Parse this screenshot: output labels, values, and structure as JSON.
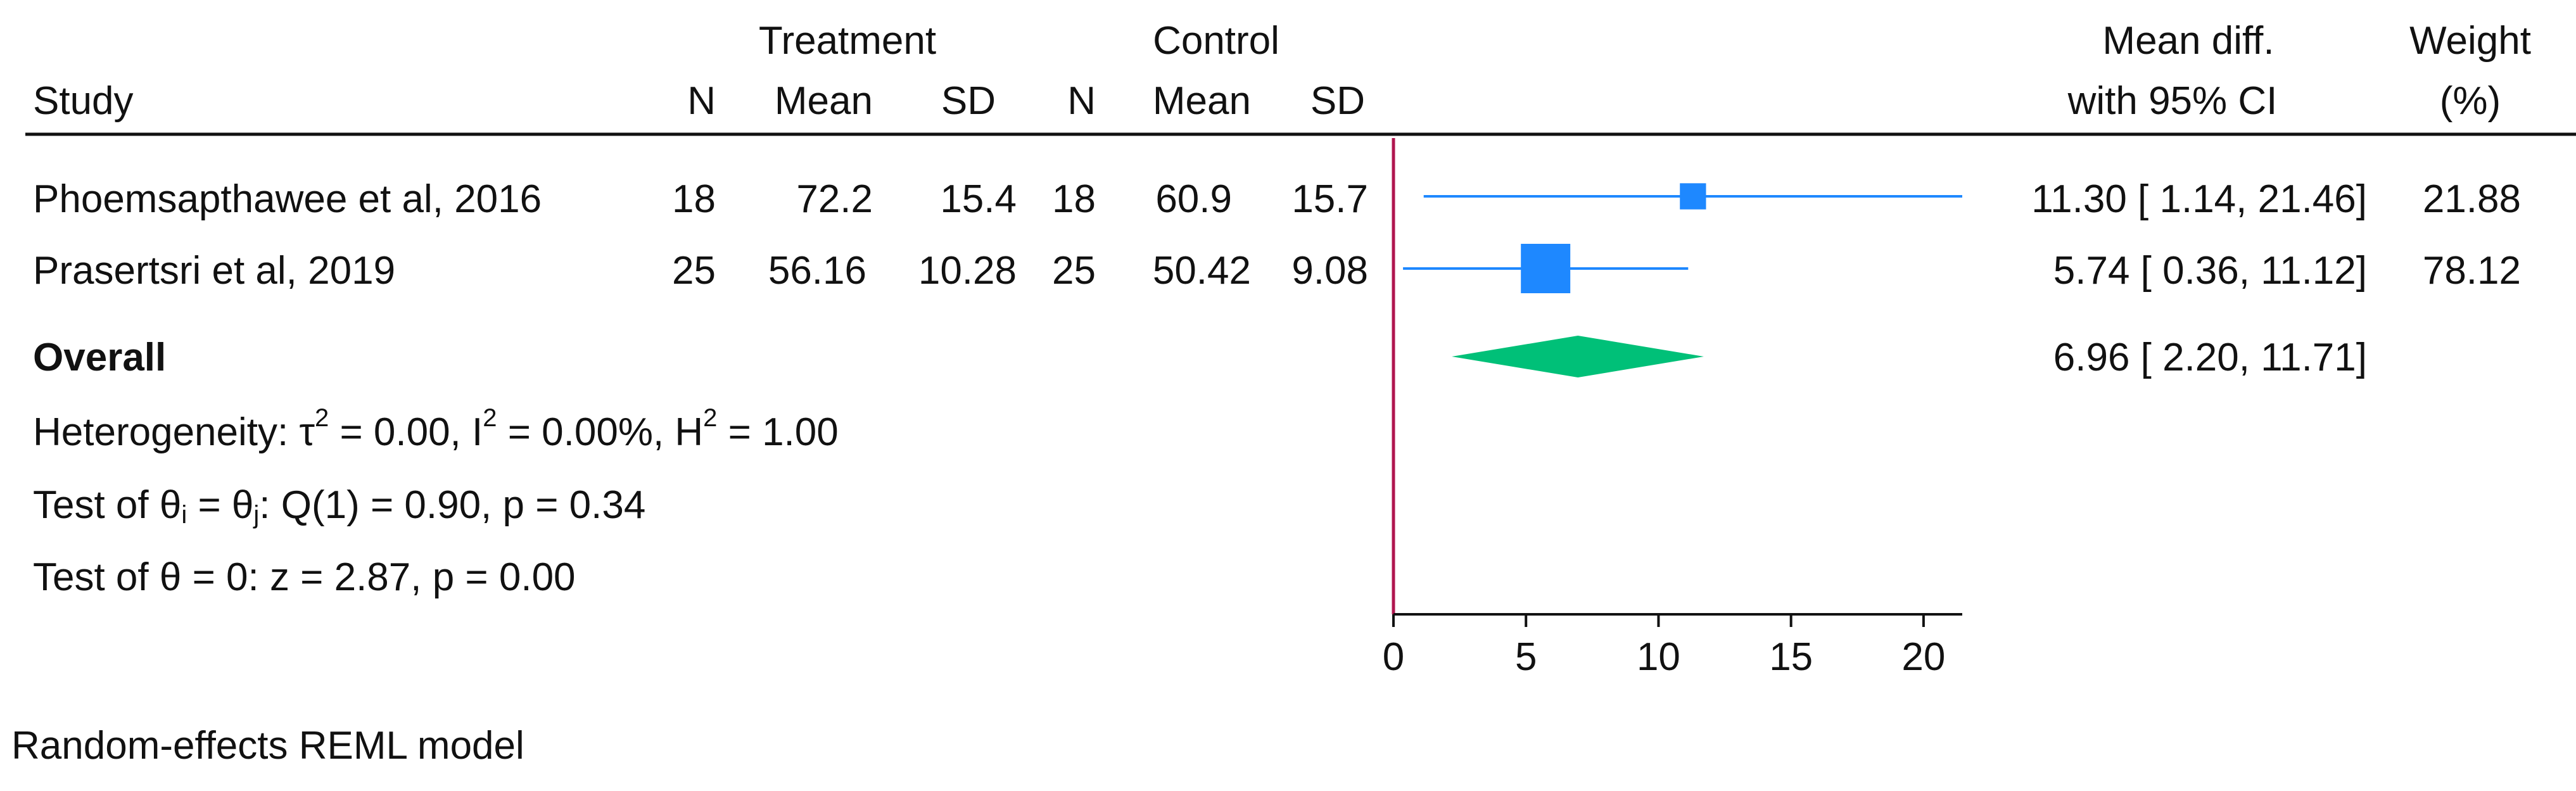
{
  "chart_data": {
    "type": "forest",
    "headers": {
      "study": "Study",
      "group_treatment": "Treatment",
      "group_control": "Control",
      "n": "N",
      "mean": "Mean",
      "sd": "SD",
      "effect_line1": "Mean diff.",
      "effect_line2": "with 95% CI",
      "weight_line1": "Weight",
      "weight_line2": "(%)"
    },
    "studies": [
      {
        "label": "Phoemsapthawee et al, 2016",
        "t_n": "18",
        "t_mean": "72.2",
        "t_sd": "15.4",
        "c_n": "18",
        "c_mean": "60.9",
        "c_sd": "15.7",
        "effect": 11.3,
        "lower": 1.14,
        "upper": 21.46,
        "ci_text": "11.30 [ 1.14,  21.46]",
        "weight": 21.88,
        "weight_text": "21.88"
      },
      {
        "label": "Prasertsri et al, 2019",
        "t_n": "25",
        "t_mean": "56.16",
        "t_sd": "10.28",
        "c_n": "25",
        "c_mean": "50.42",
        "c_sd": "9.08",
        "effect": 5.74,
        "lower": 0.36,
        "upper": 11.12,
        "ci_text": "5.74 [ 0.36,  11.12]",
        "weight": 78.12,
        "weight_text": "78.12"
      }
    ],
    "overall": {
      "label": "Overall",
      "effect": 6.96,
      "lower": 2.2,
      "upper": 11.71,
      "ci_text": "6.96 [ 2.20,  11.71]"
    },
    "heterogeneity": {
      "prefix": "Heterogeneity: τ",
      "tau_sup": "2",
      "tau_val": " = 0.00, I",
      "i_sup": "2",
      "i_val": " = 0.00%, H",
      "h_sup": "2",
      "h_val": " = 1.00"
    },
    "test_homogeneity": {
      "p1": "Test of θ",
      "s1": "i",
      "p2": " = θ",
      "s2": "j",
      "p3": ": Q(1) = 0.90, p = 0.34"
    },
    "test_overall": "Test of θ = 0: z = 2.87, p = 0.00",
    "model_note": "Random-effects REML model",
    "x_axis": {
      "ticks": [
        0,
        5,
        10,
        15,
        20
      ],
      "range": [
        0,
        21.46
      ],
      "reference_line": 0
    },
    "colors": {
      "marker": "#1e88ff",
      "ci_line": "#1e88ff",
      "diamond": "#00c078",
      "reference": "#b0164f",
      "rule": "#111111"
    }
  }
}
